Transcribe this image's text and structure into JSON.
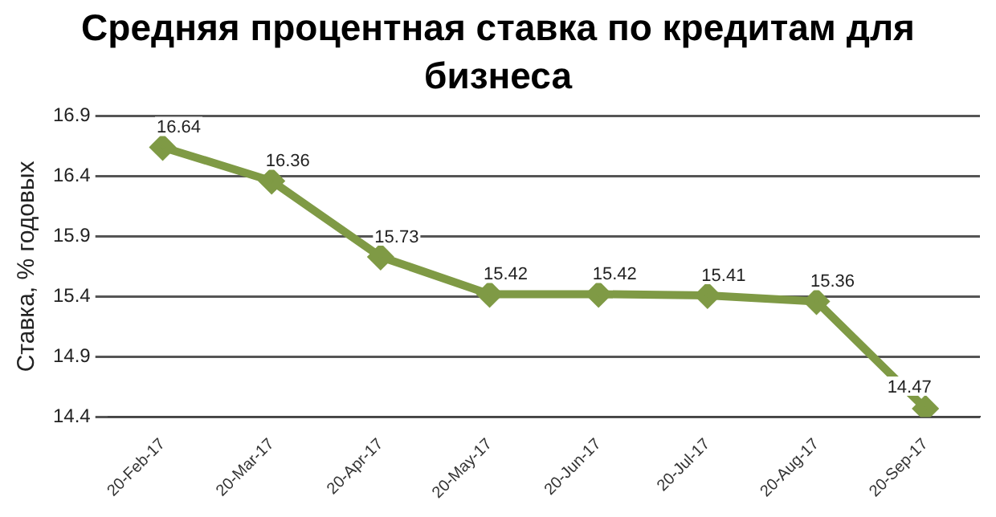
{
  "chart_data": {
    "type": "line",
    "title": "Средняя процентная ставка по кредитам для бизнеса",
    "ylabel": "Ставка, % годовых",
    "categories": [
      "20-Feb-17",
      "20-Mar-17",
      "20-Apr-17",
      "20-May-17",
      "20-Jun-17",
      "20-Jul-17",
      "20-Aug-17",
      "20-Sep-17"
    ],
    "series": [
      {
        "color": "#7f9a45",
        "values": [
          16.64,
          16.36,
          15.73,
          15.42,
          15.42,
          15.41,
          15.36,
          14.47
        ]
      }
    ],
    "ylim": [
      14.4,
      16.9
    ],
    "yticks": [
      14.4,
      14.9,
      15.4,
      15.9,
      16.4,
      16.9
    ],
    "grid": "y",
    "marker": "diamond",
    "line_style": "solid",
    "data_labels": true
  }
}
